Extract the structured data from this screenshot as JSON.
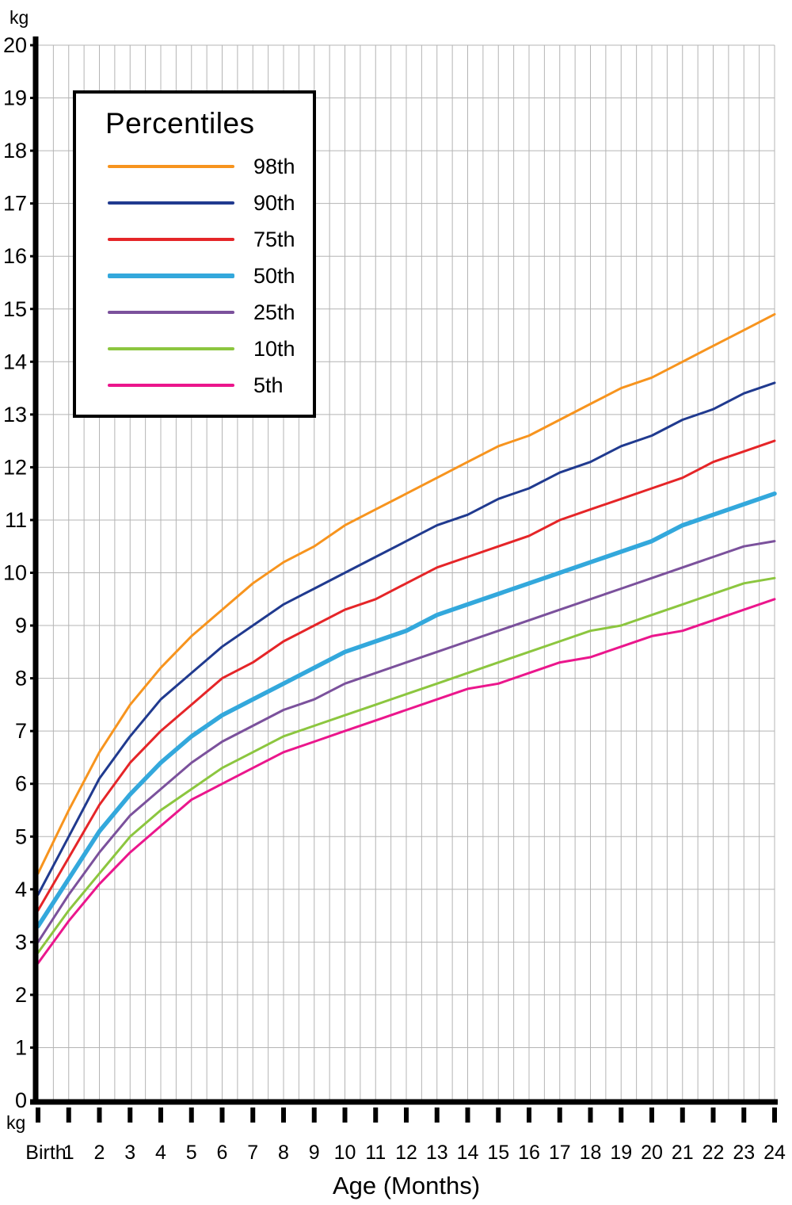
{
  "page": {
    "background_color": "#ffffff"
  },
  "chart_data": {
    "type": "line",
    "title": "",
    "xlabel": "Age (Months)",
    "y_unit": "kg",
    "x_months": [
      0,
      1,
      2,
      3,
      4,
      5,
      6,
      7,
      8,
      9,
      10,
      11,
      12,
      13,
      14,
      15,
      16,
      17,
      18,
      19,
      20,
      21,
      22,
      23,
      24
    ],
    "x_tick_labels": [
      "Birth",
      "1",
      "2",
      "3",
      "4",
      "5",
      "6",
      "7",
      "8",
      "9",
      "10",
      "11",
      "12",
      "13",
      "14",
      "15",
      "16",
      "17",
      "18",
      "19",
      "20",
      "21",
      "22",
      "23",
      "24"
    ],
    "ylim": [
      0,
      20
    ],
    "y_ticks": [
      0,
      1,
      2,
      3,
      4,
      5,
      6,
      7,
      8,
      9,
      10,
      11,
      12,
      13,
      14,
      15,
      16,
      17,
      18,
      19,
      20
    ],
    "grid": {
      "color": "#b4b4b4",
      "x_step_months": 0.5,
      "y_step_kg": 1,
      "on": true
    },
    "axis_color": "#000000",
    "legend": {
      "title": "Percentiles",
      "position": "top-left"
    },
    "series": [
      {
        "name": "98th",
        "color": "#F7941E",
        "line_width": 3,
        "values": [
          4.3,
          5.5,
          6.6,
          7.5,
          8.2,
          8.8,
          9.3,
          9.8,
          10.2,
          10.5,
          10.9,
          11.2,
          11.5,
          11.8,
          12.1,
          12.4,
          12.6,
          12.9,
          13.2,
          13.5,
          13.7,
          14.0,
          14.3,
          14.6,
          14.9
        ]
      },
      {
        "name": "90th",
        "color": "#203A8F",
        "line_width": 3,
        "values": [
          3.9,
          5.0,
          6.1,
          6.9,
          7.6,
          8.1,
          8.6,
          9.0,
          9.4,
          9.7,
          10.0,
          10.3,
          10.6,
          10.9,
          11.1,
          11.4,
          11.6,
          11.9,
          12.1,
          12.4,
          12.6,
          12.9,
          13.1,
          13.4,
          13.6
        ]
      },
      {
        "name": "75th",
        "color": "#E52528",
        "line_width": 3,
        "values": [
          3.6,
          4.6,
          5.6,
          6.4,
          7.0,
          7.5,
          8.0,
          8.3,
          8.7,
          9.0,
          9.3,
          9.5,
          9.8,
          10.1,
          10.3,
          10.5,
          10.7,
          11.0,
          11.2,
          11.4,
          11.6,
          11.8,
          12.1,
          12.3,
          12.5
        ]
      },
      {
        "name": "50th",
        "color": "#33A8DC",
        "line_width": 5.5,
        "values": [
          3.3,
          4.2,
          5.1,
          5.8,
          6.4,
          6.9,
          7.3,
          7.6,
          7.9,
          8.2,
          8.5,
          8.7,
          8.9,
          9.2,
          9.4,
          9.6,
          9.8,
          10.0,
          10.2,
          10.4,
          10.6,
          10.9,
          11.1,
          11.3,
          11.5
        ]
      },
      {
        "name": "25th",
        "color": "#7B519C",
        "line_width": 3,
        "values": [
          3.0,
          3.9,
          4.7,
          5.4,
          5.9,
          6.4,
          6.8,
          7.1,
          7.4,
          7.6,
          7.9,
          8.1,
          8.3,
          8.5,
          8.7,
          8.9,
          9.1,
          9.3,
          9.5,
          9.7,
          9.9,
          10.1,
          10.3,
          10.5,
          10.6
        ]
      },
      {
        "name": "10th",
        "color": "#8CC63F",
        "line_width": 3,
        "values": [
          2.8,
          3.6,
          4.3,
          5.0,
          5.5,
          5.9,
          6.3,
          6.6,
          6.9,
          7.1,
          7.3,
          7.5,
          7.7,
          7.9,
          8.1,
          8.3,
          8.5,
          8.7,
          8.9,
          9.0,
          9.2,
          9.4,
          9.6,
          9.8,
          9.9
        ]
      },
      {
        "name": "5th",
        "color": "#EB168C",
        "line_width": 3,
        "values": [
          2.6,
          3.4,
          4.1,
          4.7,
          5.2,
          5.7,
          6.0,
          6.3,
          6.6,
          6.8,
          7.0,
          7.2,
          7.4,
          7.6,
          7.8,
          7.9,
          8.1,
          8.3,
          8.4,
          8.6,
          8.8,
          8.9,
          9.1,
          9.3,
          9.5
        ]
      }
    ]
  }
}
